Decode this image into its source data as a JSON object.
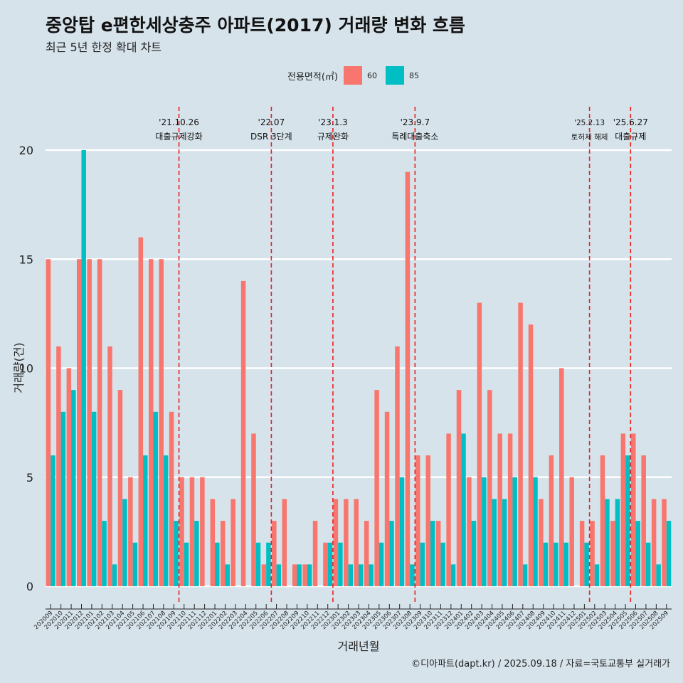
{
  "title": "중앙탑 e편한세상충주 아파트(2017) 거래량 변화 흐름",
  "subtitle": "최근 5년 한정 확대 차트",
  "caption": "©디아파트(dapt.kr) / 2025.09.18 / 자료=국토교통부 실거래가",
  "legend": {
    "title": "전용면적(㎡)",
    "items": [
      {
        "label": "60",
        "color": "#f8766d"
      },
      {
        "label": "85",
        "color": "#00bfc4"
      }
    ]
  },
  "chart_data": {
    "type": "bar",
    "xlabel": "거래년월",
    "ylabel": "거래량(건)",
    "ylim": [
      0,
      20
    ],
    "yticks": [
      0,
      5,
      10,
      15,
      20
    ],
    "grid": true,
    "legend_position": "top",
    "categories": [
      "202009",
      "202010",
      "202011",
      "202012",
      "202101",
      "202102",
      "202103",
      "202104",
      "202105",
      "202106",
      "202107",
      "202108",
      "202109",
      "202110",
      "202111",
      "202112",
      "202201",
      "202202",
      "202203",
      "202204",
      "202205",
      "202206",
      "202207",
      "202208",
      "202209",
      "202210",
      "202211",
      "202212",
      "202301",
      "202302",
      "202303",
      "202304",
      "202305",
      "202306",
      "202307",
      "202308",
      "202309",
      "202310",
      "202311",
      "202312",
      "202401",
      "202402",
      "202403",
      "202404",
      "202405",
      "202406",
      "202407",
      "202408",
      "202409",
      "202410",
      "202411",
      "202412",
      "202501",
      "202502",
      "202503",
      "202504",
      "202505",
      "202506",
      "202507",
      "202508",
      "202509"
    ],
    "series": [
      {
        "name": "60",
        "color": "#f8766d",
        "values": [
          15,
          11,
          10,
          15,
          15,
          15,
          11,
          9,
          5,
          16,
          15,
          15,
          8,
          5,
          5,
          5,
          4,
          3,
          4,
          14,
          7,
          1,
          3,
          4,
          1,
          1,
          3,
          2,
          4,
          4,
          4,
          3,
          9,
          8,
          11,
          19,
          6,
          6,
          3,
          7,
          9,
          5,
          13,
          9,
          7,
          7,
          13,
          12,
          4,
          6,
          10,
          5,
          3,
          3,
          6,
          3,
          7,
          7,
          6,
          4,
          4
        ]
      },
      {
        "name": "85",
        "color": "#00bfc4",
        "values": [
          6,
          8,
          9,
          20,
          8,
          3,
          1,
          4,
          2,
          6,
          8,
          6,
          3,
          2,
          3,
          0,
          2,
          1,
          0,
          0,
          2,
          2,
          1,
          0,
          1,
          1,
          0,
          2,
          2,
          1,
          1,
          1,
          2,
          3,
          5,
          1,
          2,
          3,
          2,
          1,
          7,
          3,
          5,
          4,
          4,
          5,
          1,
          5,
          2,
          2,
          2,
          0,
          2,
          1,
          4,
          4,
          6,
          3,
          2,
          1,
          3
        ]
      }
    ],
    "annotations": [
      {
        "category": "202110",
        "date": "'21.10.26",
        "label": "대출규제강화"
      },
      {
        "category": "202207",
        "date": "'22.07",
        "label": "DSR 3단계"
      },
      {
        "category": "202301",
        "date": "'23.1.3",
        "label": "규제완화"
      },
      {
        "category": "202309",
        "date": "'23.9.7",
        "label": "특례대출축소"
      },
      {
        "category": "202502",
        "date": "'25.2.13",
        "label": "토허제 해제"
      },
      {
        "category": "202506",
        "date": "'25.6.27",
        "label": "대출규제"
      }
    ]
  }
}
